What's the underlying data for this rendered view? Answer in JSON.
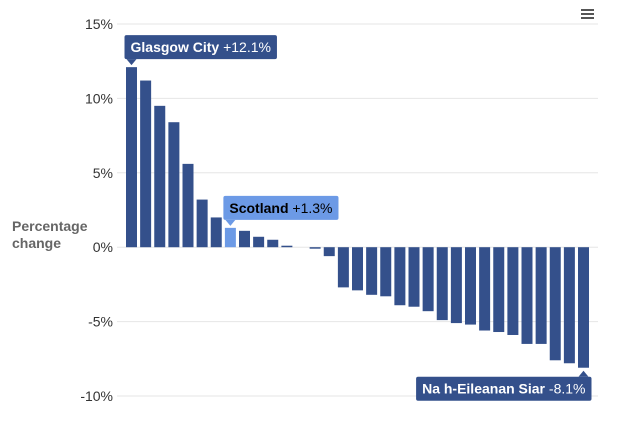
{
  "menu": {
    "icon": "hamburger-menu-icon"
  },
  "colors": {
    "bar": "#34508b",
    "highlight": "#6c9ae6",
    "grid": "#e6e6e6",
    "callout_text": "#ffffff",
    "callout_highlight_text": "#000000"
  },
  "chart_data": {
    "type": "bar",
    "title": "",
    "xlabel": "",
    "ylabel": "Percentage change",
    "ylim": [
      -10,
      15
    ],
    "y_ticks": [
      15,
      10,
      5,
      0,
      -5,
      -10
    ],
    "y_tick_labels": [
      "15%",
      "10%",
      "5%",
      "0%",
      "-5%",
      "-10%"
    ],
    "grid": true,
    "legend": "none",
    "values": [
      12.1,
      11.2,
      9.5,
      8.4,
      5.6,
      3.2,
      2.0,
      1.3,
      1.1,
      0.7,
      0.5,
      0.1,
      0.0,
      -0.1,
      -0.6,
      -2.7,
      -2.9,
      -3.2,
      -3.3,
      -3.9,
      -4.0,
      -4.3,
      -4.9,
      -5.1,
      -5.2,
      -5.6,
      -5.7,
      -5.9,
      -6.5,
      -6.5,
      -7.6,
      -7.8,
      -8.1
    ],
    "highlight_index": 7,
    "callouts": [
      {
        "index": 0,
        "name": "Glasgow City",
        "value_text": "+12.1%",
        "style": "dark",
        "position": "above"
      },
      {
        "index": 7,
        "name": "Scotland",
        "value_text": "+1.3%",
        "style": "highlight",
        "position": "above"
      },
      {
        "index": 32,
        "name": "Na h-Eileanan Siar",
        "value_text": "-8.1%",
        "style": "dark",
        "position": "below"
      }
    ]
  }
}
